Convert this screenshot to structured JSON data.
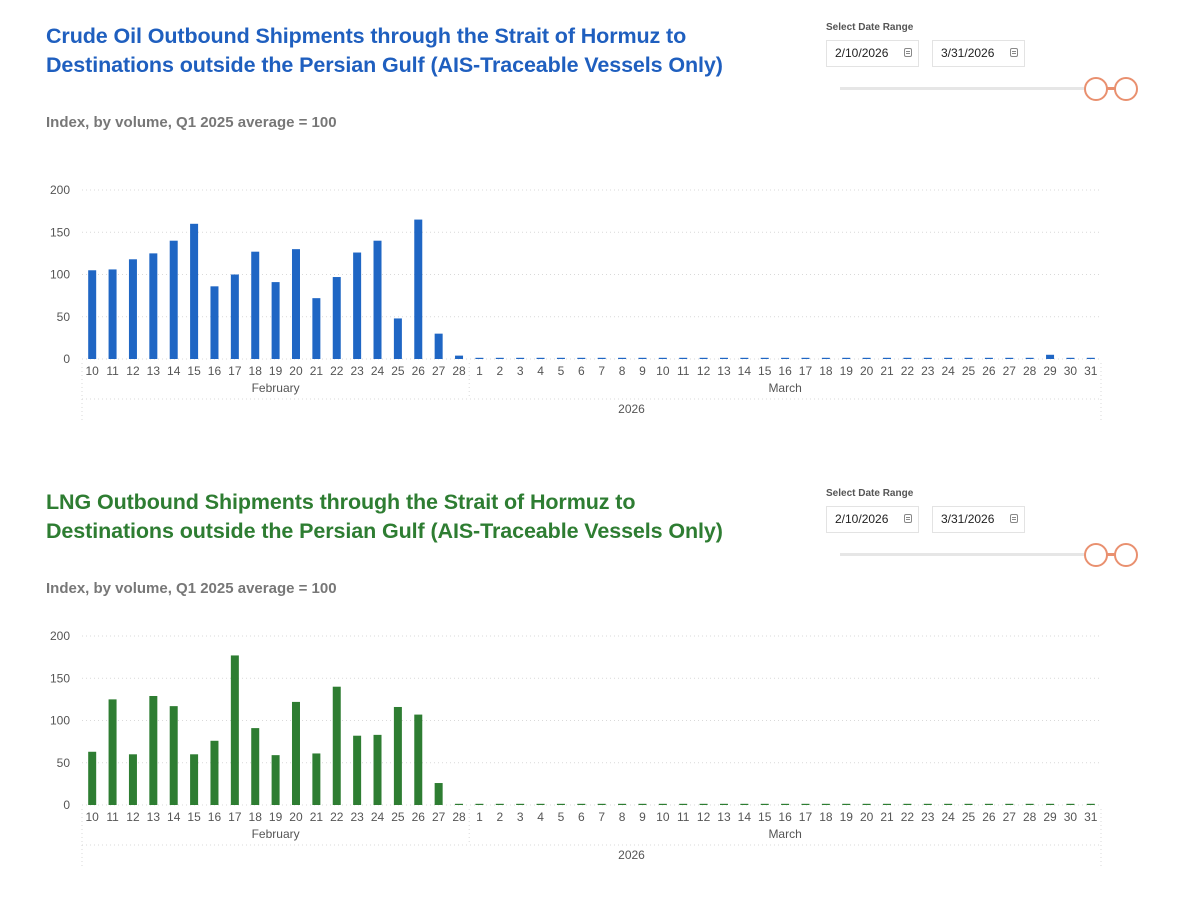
{
  "panels": [
    {
      "title_line1": "Crude Oil Outbound Shipments through the Strait of Hormuz to",
      "title_line2": "Destinations outside the Persian Gulf (AIS-Traceable Vessels Only)",
      "subtitle": "Index, by volume, Q1 2025 average = 100",
      "title_color": "#1f5fbf",
      "bar_color": "#1f66c4",
      "slicer": {
        "label": "Select Date Range",
        "start": "2/10/2026",
        "end": "3/31/2026",
        "handle_color": "#e9906f"
      }
    },
    {
      "title_line1": "LNG Outbound Shipments through the Strait of Hormuz to",
      "title_line2": "Destinations outside the Persian Gulf (AIS-Traceable Vessels Only)",
      "subtitle": "Index, by volume, Q1 2025 average = 100",
      "title_color": "#2e7d32",
      "bar_color": "#2e7d32",
      "slicer": {
        "label": "Select Date Range",
        "start": "2/10/2026",
        "end": "3/31/2026",
        "handle_color": "#e9906f"
      }
    }
  ],
  "chart_data": [
    {
      "type": "bar",
      "title": "Crude Oil Outbound Shipments through the Strait of Hormuz to Destinations outside the Persian Gulf (AIS-Traceable Vessels Only)",
      "ylabel": "Index, by volume, Q1 2025 average = 100",
      "ylim": [
        0,
        200
      ],
      "yticks": [
        "0",
        "50",
        "100",
        "150",
        "200"
      ],
      "grid": true,
      "categories": [
        "10",
        "11",
        "12",
        "13",
        "14",
        "15",
        "16",
        "17",
        "18",
        "19",
        "20",
        "21",
        "22",
        "23",
        "24",
        "25",
        "26",
        "27",
        "28",
        "1",
        "2",
        "3",
        "4",
        "5",
        "6",
        "7",
        "8",
        "9",
        "10",
        "11",
        "12",
        "13",
        "14",
        "15",
        "16",
        "17",
        "18",
        "19",
        "20",
        "21",
        "22",
        "23",
        "24",
        "25",
        "26",
        "27",
        "28",
        "29",
        "30",
        "31"
      ],
      "values": [
        105,
        106,
        118,
        125,
        140,
        160,
        86,
        100,
        127,
        91,
        130,
        72,
        97,
        126,
        140,
        48,
        165,
        30,
        4,
        0,
        0,
        0,
        0,
        0,
        0,
        0,
        0,
        0,
        0,
        0,
        0,
        0,
        0,
        0,
        0,
        0,
        0,
        0,
        0,
        0,
        0,
        0,
        0,
        0,
        0,
        0,
        0,
        5,
        0,
        0
      ],
      "months": [
        {
          "label": "February",
          "start": 0,
          "count": 19
        },
        {
          "label": "March",
          "start": 19,
          "count": 31
        }
      ],
      "year": "2026"
    },
    {
      "type": "bar",
      "title": "LNG Outbound Shipments through the Strait of Hormuz to Destinations outside the Persian Gulf (AIS-Traceable Vessels Only)",
      "ylabel": "Index, by volume, Q1 2025 average = 100",
      "ylim": [
        0,
        200
      ],
      "yticks": [
        "0",
        "50",
        "100",
        "150",
        "200"
      ],
      "grid": true,
      "categories": [
        "10",
        "11",
        "12",
        "13",
        "14",
        "15",
        "16",
        "17",
        "18",
        "19",
        "20",
        "21",
        "22",
        "23",
        "24",
        "25",
        "26",
        "27",
        "28",
        "1",
        "2",
        "3",
        "4",
        "5",
        "6",
        "7",
        "8",
        "9",
        "10",
        "11",
        "12",
        "13",
        "14",
        "15",
        "16",
        "17",
        "18",
        "19",
        "20",
        "21",
        "22",
        "23",
        "24",
        "25",
        "26",
        "27",
        "28",
        "29",
        "30",
        "31"
      ],
      "values": [
        63,
        125,
        60,
        129,
        117,
        60,
        76,
        177,
        91,
        59,
        122,
        61,
        140,
        82,
        83,
        116,
        107,
        26,
        0,
        0,
        0,
        0,
        0,
        0,
        0,
        0,
        0,
        0,
        0,
        0,
        0,
        0,
        0,
        0,
        0,
        0,
        0,
        0,
        0,
        0,
        0,
        0,
        0,
        0,
        0,
        0,
        0,
        0,
        0,
        0
      ],
      "months": [
        {
          "label": "February",
          "start": 0,
          "count": 19
        },
        {
          "label": "March",
          "start": 19,
          "count": 31
        }
      ],
      "year": "2026"
    }
  ]
}
